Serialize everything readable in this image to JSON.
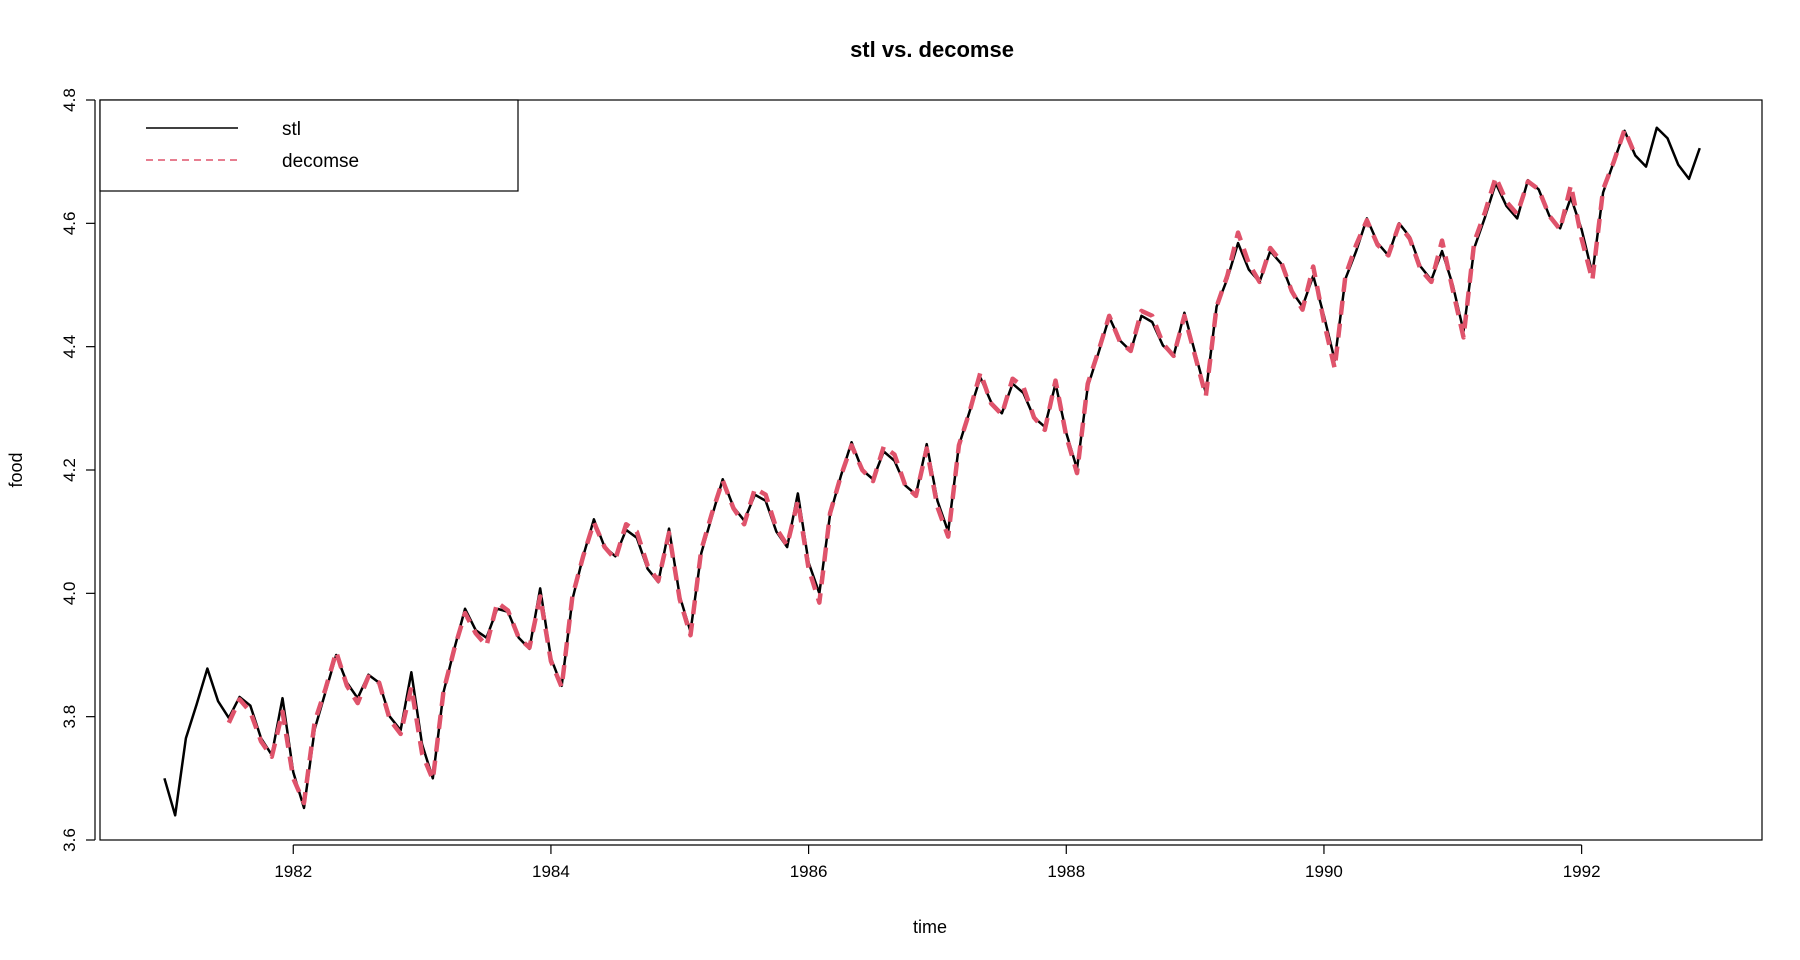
{
  "chart_data": {
    "type": "line",
    "title": "stl vs. decomse",
    "xlabel": "time",
    "ylabel": "food",
    "xlim": [
      1980.5,
      1993.4
    ],
    "ylim": [
      3.6,
      4.8
    ],
    "x_ticks": [
      1982,
      1984,
      1986,
      1988,
      1990,
      1992
    ],
    "y_ticks": [
      3.6,
      3.8,
      4.0,
      4.2,
      4.4,
      4.6,
      4.8
    ],
    "x_tick_labels": [
      "1982",
      "1984",
      "1986",
      "1988",
      "1990",
      "1992"
    ],
    "y_tick_labels": [
      "3.6",
      "3.8",
      "4.0",
      "4.2",
      "4.4",
      "4.6",
      "4.8"
    ],
    "grid": false,
    "legend": {
      "position": "top-left"
    },
    "x_start": 1981.0,
    "x_step": 0.08333333,
    "series": [
      {
        "name": "stl",
        "color": "#000000",
        "style": "solid",
        "values": [
          3.7,
          3.64,
          3.765,
          3.82,
          3.878,
          3.825,
          3.798,
          3.832,
          3.818,
          3.765,
          3.738,
          3.83,
          3.71,
          3.652,
          3.78,
          3.84,
          3.9,
          3.855,
          3.83,
          3.868,
          3.855,
          3.8,
          3.778,
          3.872,
          3.755,
          3.7,
          3.84,
          3.91,
          3.975,
          3.94,
          3.928,
          3.975,
          3.97,
          3.928,
          3.91,
          4.008,
          3.895,
          3.85,
          3.99,
          4.06,
          4.12,
          4.075,
          4.06,
          4.103,
          4.09,
          4.04,
          4.018,
          4.105,
          3.995,
          3.938,
          4.065,
          4.125,
          4.185,
          4.14,
          4.118,
          4.16,
          4.15,
          4.1,
          4.075,
          4.162,
          4.05,
          4.0,
          4.128,
          4.19,
          4.245,
          4.2,
          4.185,
          4.23,
          4.215,
          4.175,
          4.16,
          4.242,
          4.15,
          4.1,
          4.24,
          4.295,
          4.35,
          4.31,
          4.292,
          4.34,
          4.325,
          4.285,
          4.27,
          4.34,
          4.26,
          4.202,
          4.335,
          4.39,
          4.448,
          4.41,
          4.393,
          4.45,
          4.44,
          4.402,
          4.385,
          4.455,
          4.39,
          4.325,
          4.465,
          4.51,
          4.568,
          4.525,
          4.505,
          4.555,
          4.535,
          4.49,
          4.465,
          4.515,
          4.45,
          4.378,
          4.51,
          4.555,
          4.608,
          4.568,
          4.548,
          4.6,
          4.578,
          4.53,
          4.508,
          4.555,
          4.5,
          4.425,
          4.56,
          4.61,
          4.665,
          4.628,
          4.608,
          4.67,
          4.655,
          4.612,
          4.592,
          4.642,
          4.59,
          4.518,
          4.65,
          4.7,
          4.75,
          4.71,
          4.692,
          4.755,
          4.738,
          4.695,
          4.672,
          4.722
        ]
      },
      {
        "name": "decomse",
        "color": "#DF536B",
        "style": "dashed",
        "offset": 6,
        "values": [
          3.79,
          3.828,
          3.808,
          3.76,
          3.735,
          3.808,
          3.7,
          3.66,
          3.792,
          3.845,
          3.905,
          3.85,
          3.822,
          3.865,
          3.855,
          3.795,
          3.772,
          3.848,
          3.74,
          3.698,
          3.842,
          3.91,
          3.968,
          3.935,
          3.915,
          3.985,
          3.972,
          3.928,
          3.912,
          3.995,
          3.89,
          3.848,
          3.995,
          4.06,
          4.115,
          4.075,
          4.055,
          4.112,
          4.1,
          4.045,
          4.02,
          4.098,
          3.99,
          3.932,
          4.07,
          4.13,
          4.183,
          4.138,
          4.112,
          4.17,
          4.16,
          4.105,
          4.078,
          4.15,
          4.04,
          3.985,
          4.13,
          4.19,
          4.24,
          4.2,
          4.182,
          4.238,
          4.225,
          4.175,
          4.158,
          4.235,
          4.14,
          4.092,
          4.24,
          4.295,
          4.358,
          4.308,
          4.29,
          4.348,
          4.335,
          4.285,
          4.265,
          4.345,
          4.255,
          4.195,
          4.34,
          4.393,
          4.45,
          4.408,
          4.393,
          4.458,
          4.45,
          4.405,
          4.385,
          4.45,
          4.385,
          4.32,
          4.465,
          4.515,
          4.585,
          4.535,
          4.505,
          4.56,
          4.538,
          4.49,
          4.46,
          4.53,
          4.44,
          4.365,
          4.515,
          4.565,
          4.605,
          4.565,
          4.548,
          4.598,
          4.575,
          4.525,
          4.505,
          4.572,
          4.492,
          4.415,
          4.57,
          4.618,
          4.675,
          4.635,
          4.615,
          4.668,
          4.655,
          4.612,
          4.59,
          4.662,
          4.575,
          4.508,
          4.655,
          4.7,
          4.752,
          4.71
        ]
      }
    ]
  }
}
